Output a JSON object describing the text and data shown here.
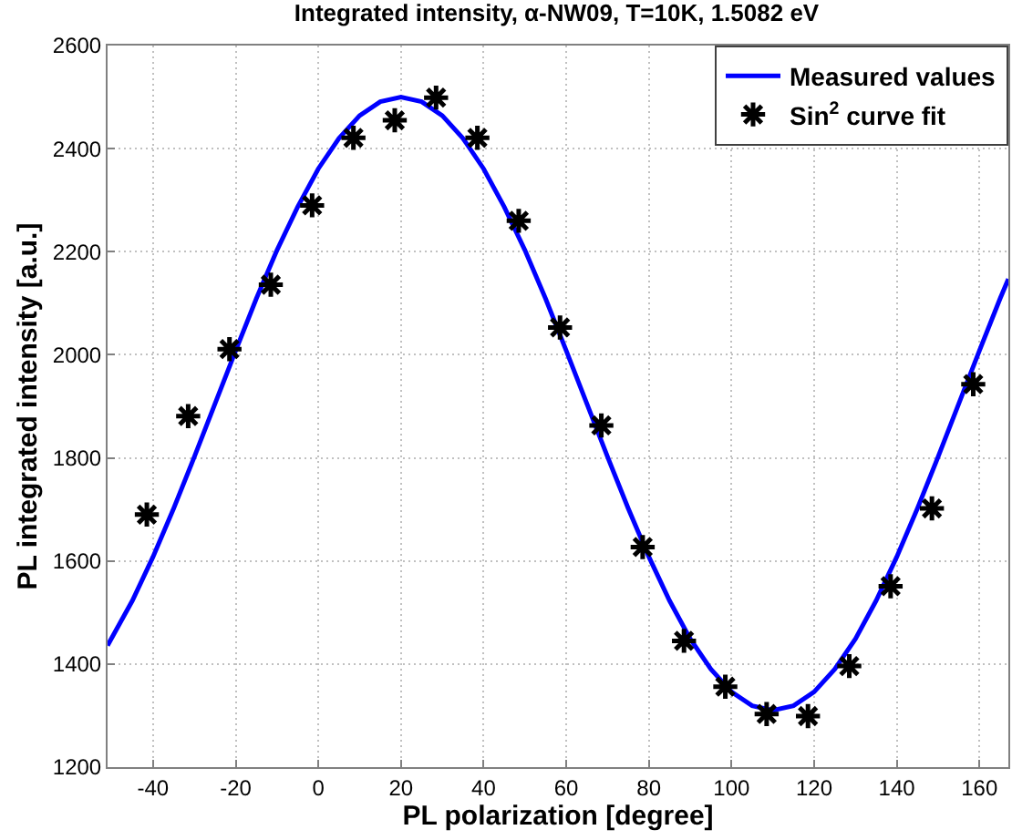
{
  "chart_data": {
    "type": "line",
    "title": "Integrated intensity, α-NW09, T=10K, 1.5082 eV",
    "xlabel": "PL polarization [degree]",
    "ylabel": "PL integrated intensity [a.u.]",
    "xlim": [
      -51,
      167
    ],
    "xticks": [
      -40,
      -20,
      0,
      20,
      40,
      60,
      80,
      100,
      120,
      140,
      160
    ],
    "ylim": [
      1200,
      2600
    ],
    "yticks": [
      1200,
      1400,
      1600,
      1800,
      2000,
      2200,
      2400,
      2600
    ],
    "grid": true,
    "legend": "top right",
    "series": [
      {
        "name": "Measured values",
        "color": "#0000ff",
        "line_style": "solid",
        "marker": "none",
        "x": [
          -51,
          -45,
          -40,
          -35,
          -30,
          -25,
          -20,
          -15,
          -10,
          -5,
          0,
          5,
          10,
          15,
          20,
          25,
          30,
          35,
          40,
          45,
          50,
          55,
          60,
          65,
          70,
          75,
          80,
          85,
          90,
          95,
          100,
          105,
          110,
          115,
          120,
          125,
          130,
          135,
          140,
          145,
          150,
          155,
          160,
          165,
          167
        ],
        "values": [
          1436,
          1523,
          1608,
          1702,
          1802,
          1905,
          2008,
          2109,
          2203,
          2287,
          2361,
          2420,
          2464,
          2491,
          2500,
          2491,
          2464,
          2420,
          2361,
          2287,
          2203,
          2109,
          2008,
          1905,
          1802,
          1702,
          1608,
          1523,
          1449,
          1390,
          1346,
          1319,
          1310,
          1319,
          1346,
          1390,
          1449,
          1523,
          1608,
          1702,
          1802,
          1905,
          2008,
          2109,
          2147
        ]
      },
      {
        "name": "Sin$^{2}$ curve fit",
        "type": "scatter",
        "color": "#000000",
        "marker": "cross",
        "x": [
          -41.5,
          -31.5,
          -21.5,
          -11.5,
          -1.5,
          8.5,
          18.5,
          28.5,
          38.5,
          48.5,
          58.5,
          68.5,
          78.5,
          88.5,
          98.5,
          108.5,
          118.5,
          128.5,
          138.5,
          148.5,
          158.5
        ],
        "values": [
          1690,
          1881,
          2011,
          2136,
          2290,
          2421,
          2455,
          2499,
          2421,
          2260,
          2053,
          1863,
          1627,
          1445,
          1356,
          1303,
          1299,
          1396,
          1551,
          1702,
          1943
        ]
      }
    ]
  }
}
